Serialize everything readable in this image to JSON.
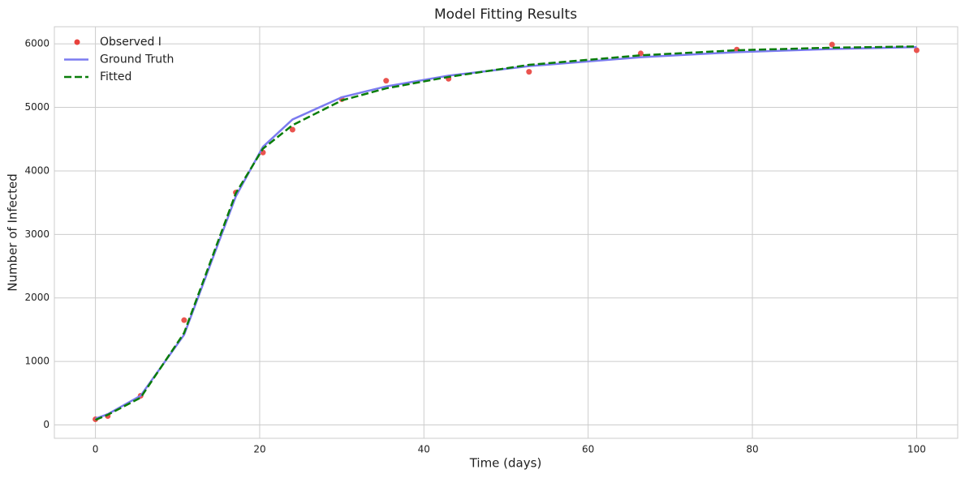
{
  "chart_data": {
    "type": "line",
    "title": "Model Fitting Results",
    "x_label": "Time (days)",
    "y_label": "Number of Infected",
    "x": [
      0,
      1.5,
      5.5,
      10.8,
      17.1,
      20.4,
      24,
      30,
      35.4,
      43,
      52.8,
      66.4,
      78.1,
      89.7,
      100
    ],
    "series": [
      {
        "name": "Observed I",
        "kind": "scatter",
        "color": "#e8413c",
        "values": [
          90,
          140,
          460,
          1650,
          3660,
          4290,
          4650,
          5130,
          5420,
          5450,
          5560,
          5850,
          5910,
          5990,
          5900
        ]
      },
      {
        "name": "Ground Truth",
        "kind": "line",
        "color": "#7b7bf0",
        "dashed": false,
        "values": [
          100,
          170,
          460,
          1420,
          3600,
          4380,
          4810,
          5160,
          5330,
          5500,
          5650,
          5790,
          5870,
          5920,
          5950
        ]
      },
      {
        "name": "Fitted",
        "kind": "line",
        "color": "#0a7d0a",
        "dashed": true,
        "values": [
          80,
          160,
          430,
          1450,
          3650,
          4350,
          4720,
          5110,
          5300,
          5480,
          5670,
          5820,
          5900,
          5940,
          5960
        ]
      }
    ],
    "xlim": [
      -5,
      105
    ],
    "ylim": [
      -210,
      6270
    ],
    "xticks": [
      0,
      20,
      40,
      60,
      80,
      100
    ],
    "yticks": [
      0,
      1000,
      2000,
      3000,
      4000,
      5000,
      6000
    ],
    "grid": true,
    "legend": "upper left"
  }
}
